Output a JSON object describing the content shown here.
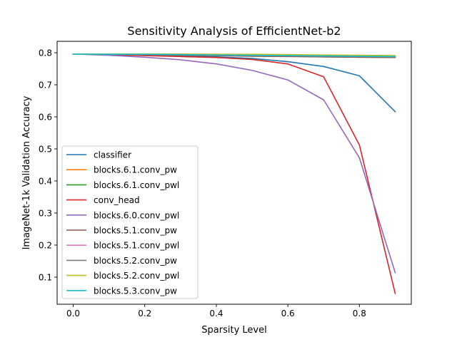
{
  "chart_data": {
    "type": "line",
    "title": "Sensitivity Analysis of EfficientNet-b2",
    "xlabel": "Sparsity Level",
    "ylabel": "ImageNet-1k Validation Accuracy",
    "xlim": [
      -0.045,
      0.945
    ],
    "ylim": [
      0.0155,
      0.8355
    ],
    "xticks": [
      0.0,
      0.2,
      0.4,
      0.6,
      0.8
    ],
    "xtick_labels": [
      "0.0",
      "0.2",
      "0.4",
      "0.6",
      "0.8"
    ],
    "yticks": [
      0.1,
      0.2,
      0.3,
      0.4,
      0.5,
      0.6,
      0.7,
      0.8
    ],
    "ytick_labels": [
      "0.1",
      "0.2",
      "0.3",
      "0.4",
      "0.5",
      "0.6",
      "0.7",
      "0.8"
    ],
    "grid": false,
    "legend_position": "lower-left",
    "x": [
      0.0,
      0.1,
      0.2,
      0.3,
      0.4,
      0.5,
      0.6,
      0.7,
      0.8,
      0.9
    ],
    "series": [
      {
        "name": "classifier",
        "color": "#1f77b4",
        "values": [
          0.796,
          0.795,
          0.793,
          0.79,
          0.787,
          0.782,
          0.772,
          0.757,
          0.728,
          0.616
        ]
      },
      {
        "name": "blocks.6.1.conv_pw",
        "color": "#ff7f0e",
        "values": [
          0.796,
          0.796,
          0.796,
          0.795,
          0.795,
          0.794,
          0.793,
          0.792,
          0.79,
          0.788
        ]
      },
      {
        "name": "blocks.6.1.conv_pwl",
        "color": "#2ca02c",
        "values": [
          0.796,
          0.795,
          0.794,
          0.793,
          0.791,
          0.79,
          0.789,
          0.787,
          0.786,
          0.785
        ]
      },
      {
        "name": "conv_head",
        "color": "#d62728",
        "values": [
          0.796,
          0.794,
          0.791,
          0.788,
          0.785,
          0.779,
          0.765,
          0.725,
          0.512,
          0.049
        ]
      },
      {
        "name": "blocks.6.0.conv_pwl",
        "color": "#9467bd",
        "values": [
          0.796,
          0.792,
          0.786,
          0.778,
          0.765,
          0.745,
          0.715,
          0.653,
          0.472,
          0.114
        ]
      },
      {
        "name": "blocks.5.1.conv_pw",
        "color": "#8c564b",
        "values": [
          0.796,
          0.795,
          0.794,
          0.792,
          0.791,
          0.789,
          0.788,
          0.787,
          0.786,
          0.785
        ]
      },
      {
        "name": "blocks.5.1.conv_pwl",
        "color": "#e377c2",
        "values": [
          0.796,
          0.795,
          0.795,
          0.794,
          0.793,
          0.792,
          0.791,
          0.79,
          0.789,
          0.788
        ]
      },
      {
        "name": "blocks.5.2.conv_pw",
        "color": "#7f7f7f",
        "values": [
          0.796,
          0.795,
          0.794,
          0.793,
          0.792,
          0.791,
          0.79,
          0.789,
          0.788,
          0.787
        ]
      },
      {
        "name": "blocks.5.2.conv_pwl",
        "color": "#bcbd22",
        "values": [
          0.796,
          0.796,
          0.796,
          0.796,
          0.795,
          0.795,
          0.794,
          0.793,
          0.792,
          0.791
        ]
      },
      {
        "name": "blocks.5.3.conv_pw",
        "color": "#17becf",
        "values": [
          0.796,
          0.795,
          0.795,
          0.794,
          0.793,
          0.792,
          0.791,
          0.79,
          0.789,
          0.788
        ]
      }
    ]
  }
}
